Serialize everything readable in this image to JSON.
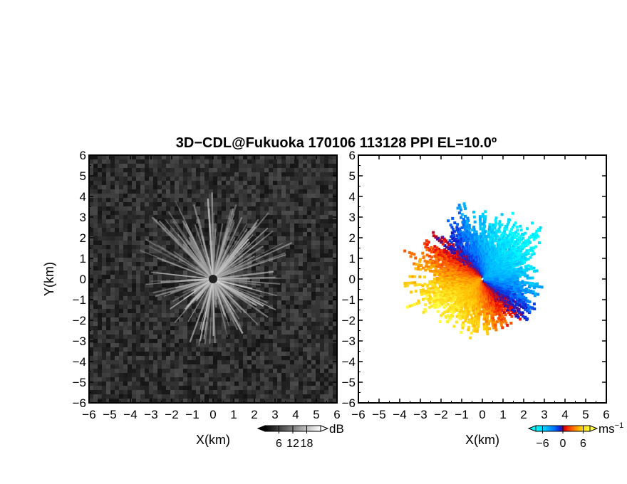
{
  "title": "3D−CDL@Fukuoka 170106 113128 PPI EL=10.0º",
  "chart_data": [
    {
      "type": "heatmap",
      "panel": "left",
      "quantity": "received power",
      "xlabel": "X(km)",
      "ylabel": "Y(km)",
      "xlim": [
        -6,
        6
      ],
      "ylim": [
        -6,
        6
      ],
      "xticks": [
        -6,
        -5,
        -4,
        -3,
        -2,
        -1,
        0,
        1,
        2,
        3,
        4,
        5,
        6
      ],
      "yticks": [
        -6,
        -5,
        -4,
        -3,
        -2,
        -1,
        0,
        1,
        2,
        3,
        4,
        5,
        6
      ],
      "tick_labels": [
        "−6",
        "−5",
        "−4",
        "−3",
        "−2",
        "−1",
        "0",
        "1",
        "2",
        "3",
        "4",
        "5",
        "6"
      ],
      "colormap": "grayscale",
      "colorbar": {
        "unit": "dB",
        "ticks": [
          6,
          12,
          18
        ],
        "tick_labels": [
          "6",
          "12",
          "18"
        ],
        "range": [
          0,
          24
        ]
      },
      "description_values": {
        "background_dB": 3,
        "ray_peak_dB": 18,
        "max_range_km": 4.2
      }
    },
    {
      "type": "heatmap",
      "panel": "right",
      "quantity": "radial velocity",
      "xlabel": "X(km)",
      "ylabel": "",
      "xlim": [
        -6,
        6
      ],
      "ylim": [
        -6,
        6
      ],
      "xticks": [
        -6,
        -5,
        -4,
        -3,
        -2,
        -1,
        0,
        1,
        2,
        3,
        4,
        5,
        6
      ],
      "yticks": [
        -6,
        -5,
        -4,
        -3,
        -2,
        -1,
        0,
        1,
        2,
        3,
        4,
        5,
        6
      ],
      "tick_labels": [
        "−6",
        "−5",
        "−4",
        "−3",
        "−2",
        "−1",
        "0",
        "1",
        "2",
        "3",
        "4",
        "5",
        "6"
      ],
      "colormap": "diverging velocity",
      "colorbar": {
        "unit": "ms",
        "unit_exp": "−1",
        "ticks": [
          -6,
          0,
          6
        ],
        "tick_labels": [
          "−6",
          "0",
          "6"
        ],
        "range": [
          -8,
          8
        ]
      },
      "description_values": {
        "max_range_km": 4.2
      }
    }
  ],
  "colors": {
    "velocity_scale": [
      "#00ffff",
      "#00b0ff",
      "#0060ff",
      "#1010c0",
      "#e00000",
      "#ff6000",
      "#ffc000",
      "#ffff40"
    ],
    "gray_scale": [
      "#000000",
      "#ffffff"
    ],
    "axis": "#000000"
  }
}
